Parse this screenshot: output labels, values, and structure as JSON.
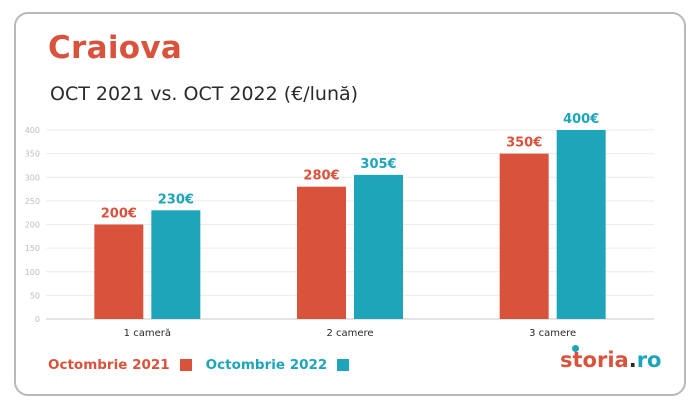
{
  "title": "Craiova",
  "subtitle": "OCT 2021 vs. OCT 2022 (€/lună)",
  "colors": {
    "title": "#d9533c",
    "series_2021": "#d9533c",
    "series_2022": "#1ea5b9"
  },
  "logo": {
    "brand": "storia",
    "dot": ".",
    "tld": "ro"
  },
  "chart_data": {
    "type": "bar",
    "categories": [
      "1 cameră",
      "2 camere",
      "3 camere"
    ],
    "series": [
      {
        "name": "Octombrie 2021",
        "values": [
          200,
          280,
          350
        ],
        "labels": [
          "200€",
          "280€",
          "350€"
        ],
        "color": "#d9533c"
      },
      {
        "name": "Octombrie 2022",
        "values": [
          230,
          305,
          400
        ],
        "labels": [
          "230€",
          "305€",
          "400€"
        ],
        "color": "#1ea5b9"
      }
    ],
    "ylim": [
      0,
      400
    ],
    "yticks": [
      0,
      50,
      100,
      150,
      200,
      250,
      300,
      350,
      400
    ],
    "grid": true,
    "legend_position": "bottom-left",
    "title": "Craiova",
    "subtitle": "OCT 2021 vs. OCT 2022 (€/lună)"
  }
}
